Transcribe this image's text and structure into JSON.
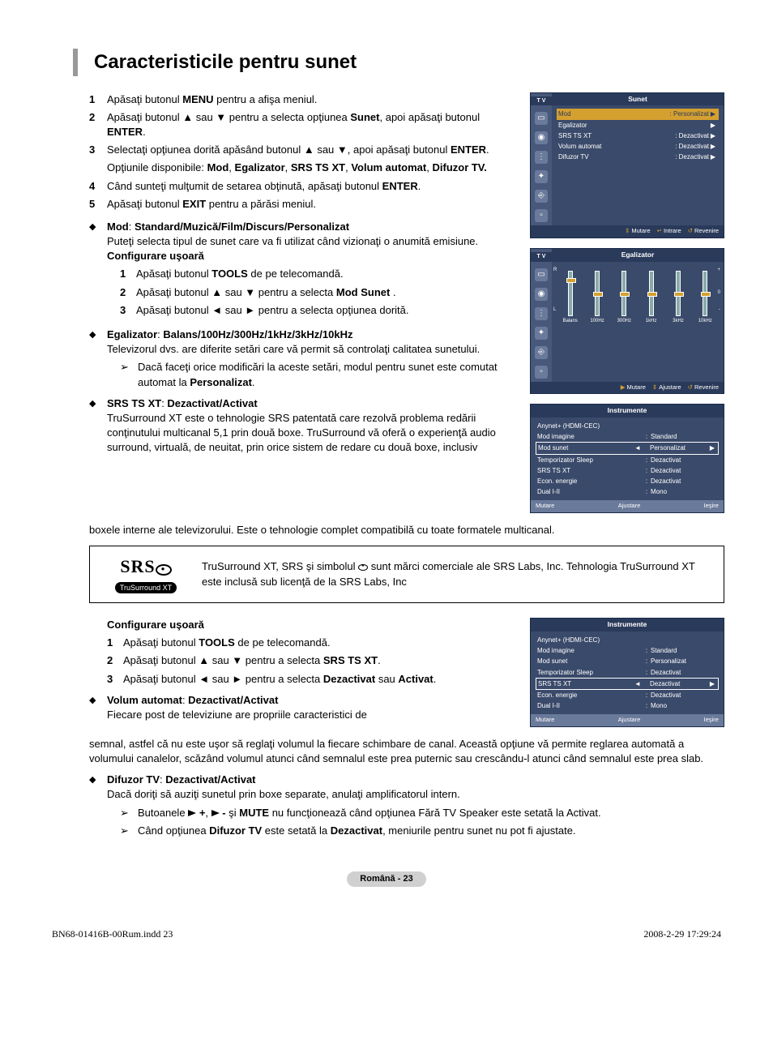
{
  "page": {
    "title": "Caracteristicile pentru sunet",
    "footer_badge": "Română - 23",
    "print_file": "BN68-01416B-00Rum.indd   23",
    "print_date": "2008-2-29   17:29:24"
  },
  "steps": [
    {
      "n": "1",
      "html": "Apăsaţi butonul <b>MENU</b> pentru a afişa meniul."
    },
    {
      "n": "2",
      "html": "Apăsaţi butonul ▲ sau ▼ pentru a selecta opţiunea <b>Sunet</b>, apoi apăsaţi butonul <b>ENTER</b>."
    },
    {
      "n": "3",
      "html": "Selectaţi opţiunea dorită apăsând butonul ▲ sau ▼, apoi apăsaţi butonul <b>ENTER</b>."
    },
    {
      "n": "",
      "html": "Opţiunile disponibile: <b>Mod</b>, <b>Egalizator</b>, <b>SRS TS XT</b>, <b>Volum automat</b>, <b>Difuzor TV.</b>"
    },
    {
      "n": "4",
      "html": "Când sunteţi mulţumit de setarea obţinută, apăsaţi butonul <b>ENTER</b>."
    },
    {
      "n": "5",
      "html": "Apăsaţi butonul <b>EXIT</b> pentru a părăsi meniul."
    }
  ],
  "modes": {
    "title": "Mod",
    "opts": "Standard/Muzică/Film/Discurs/Personalizat",
    "desc": "Puteţi selecta tipul de sunet care va fi utilizat când vizionaţi o anumită emisiune.",
    "easy": "Configurare uşoară",
    "sub": [
      {
        "n": "1",
        "html": "Apăsaţi butonul <b>TOOLS</b> de pe telecomandă."
      },
      {
        "n": "2",
        "html": "Apăsaţi butonul ▲ sau ▼ pentru a selecta <b>Mod Sunet</b> ."
      },
      {
        "n": "3",
        "html": "Apăsaţi butonul ◄ sau ► pentru a selecta opţiunea dorită."
      }
    ]
  },
  "eq": {
    "title": "Egalizator",
    "opts": "Balans/100Hz/300Hz/1kHz/3kHz/10kHz",
    "desc": "Televizorul dvs. are diferite setări care vă permit să controlaţi calitatea sunetului.",
    "note": "Dacă faceţi orice modificări la aceste setări, modul pentru sunet este comutat automat la <b>Personalizat</b>."
  },
  "srs": {
    "title": "SRS TS XT",
    "opts": "Dezactivat/Activat",
    "desc": "TruSurround XT este o tehnologie SRS patentată care rezolvă problema redării conţinutului multicanal 5,1 prin două boxe. TruSurround vă oferă o experienţă audio surround, virtuală, de neuitat, prin orice sistem de redare cu două boxe, inclusiv boxele interne ale televizorului. Este o tehnologie complet compatibilă cu toate formatele multicanal.",
    "box1": "TruSurround XT, SRS şi simbolul",
    "box2": "sunt mărci comerciale ale SRS Labs, Inc. Tehnologia TruSurround XT este inclusă sub licenţă de la SRS Labs, Inc",
    "logo_big": "SRS",
    "logo_sub": "TruSurround XT"
  },
  "easy2": {
    "title": "Configurare uşoară",
    "sub": [
      {
        "n": "1",
        "html": "Apăsaţi butonul <b>TOOLS</b> de pe telecomandă."
      },
      {
        "n": "2",
        "html": "Apăsaţi butonul ▲ sau ▼ pentru a selecta <b>SRS TS XT</b>."
      },
      {
        "n": "3",
        "html": "Apăsaţi butonul ◄ sau ► pentru a selecta <b>Dezactivat</b> sau <b>Activat</b>."
      }
    ]
  },
  "vol": {
    "title": "Volum automat",
    "opts": "Dezactivat/Activat",
    "desc": "Fiecare post de televiziune are propriile caracteristici de semnal, astfel că nu este uşor să reglaţi volumul la fiecare schimbare de canal. Această opţiune vă permite reglarea automată a volumului canalelor, scăzând volumul atunci când semnalul este prea puternic sau crescându-l atunci când semnalul este prea slab."
  },
  "dif": {
    "title": "Difuzor TV",
    "opts": "Dezactivat/Activat",
    "desc": "Dacă doriţi să auziţi sunetul prin boxe separate, anulaţi amplificatorul intern.",
    "note1a": "Butoanele",
    "note1b": "şi <b>MUTE</b> nu funcţionează când opţiunea Fără TV Speaker este setată la Activat.",
    "note2": "Când opţiunea <b>Difuzor TV</b> este setată la <b>Dezactivat</b>, meniurile pentru sunet nu pot fi ajustate."
  },
  "osd_sunet": {
    "header": "Sunet",
    "tv": "T V",
    "rows": [
      {
        "l": "Mod",
        "v": ": Personalizat",
        "hl": true
      },
      {
        "l": "Egalizator",
        "v": ""
      },
      {
        "l": "SRS TS XT",
        "v": ": Dezactivat"
      },
      {
        "l": "Volum automat",
        "v": ": Dezactivat"
      },
      {
        "l": "Difuzor TV",
        "v": ": Dezactivat"
      }
    ],
    "f": {
      "a": "Mutare",
      "b": "Intrare",
      "c": "Revenire"
    }
  },
  "osd_eq": {
    "header": "Egalizator",
    "tv": "T V",
    "bands": [
      "Balans",
      "100Hz",
      "300Hz",
      "1kHz",
      "3kHz",
      "10kHz"
    ],
    "marks": {
      "R": "R",
      "L": "L",
      "plus": "+",
      "zero": "0",
      "minus": "-"
    },
    "f": {
      "a": "Mutare",
      "b": "Ajustare",
      "c": "Revenire"
    }
  },
  "osd_inst1": {
    "header": "Instrumente",
    "rows": [
      {
        "l": "Anynet+ (HDMI-CEC)",
        "s": "",
        "v": ""
      },
      {
        "l": "Mod imagine",
        "s": ":",
        "v": "Standard"
      },
      {
        "l": "Mod sunet",
        "s": "",
        "v": "Personalizat",
        "hl": true,
        "arrows": true
      },
      {
        "l": "Temporizator Sleep",
        "s": ":",
        "v": "Dezactivat"
      },
      {
        "l": "SRS TS XT",
        "s": ":",
        "v": "Dezactivat"
      },
      {
        "l": "Econ. energie",
        "s": ":",
        "v": "Dezactivat"
      },
      {
        "l": "Dual I-II",
        "s": ":",
        "v": "Mono"
      }
    ],
    "f": {
      "a": "Mutare",
      "b": "Ajustare",
      "c": "Ieşire"
    }
  },
  "osd_inst2": {
    "header": "Instrumente",
    "rows": [
      {
        "l": "Anynet+ (HDMI-CEC)",
        "s": "",
        "v": ""
      },
      {
        "l": "Mod imagine",
        "s": ":",
        "v": "Standard"
      },
      {
        "l": "Mod sunet",
        "s": ":",
        "v": "Personalizat"
      },
      {
        "l": "Temporizator Sleep",
        "s": ":",
        "v": "Dezactivat"
      },
      {
        "l": "SRS TS XT",
        "s": "",
        "v": "Dezactivat",
        "hl": true,
        "arrows": true
      },
      {
        "l": "Econ. energie",
        "s": ":",
        "v": "Dezactivat"
      },
      {
        "l": "Dual I-II",
        "s": ":",
        "v": "Mono"
      }
    ],
    "f": {
      "a": "Mutare",
      "b": "Ajustare",
      "c": "Ieşire"
    }
  },
  "colors": {
    "osd_bg": "#3a4a6a",
    "osd_dark": "#2a3a5a",
    "osd_hl": "#d4a030",
    "page_bg": "#ffffff"
  }
}
